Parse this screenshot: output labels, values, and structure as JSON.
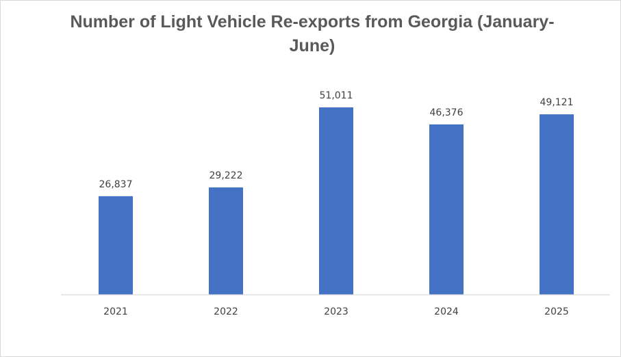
{
  "chart_data": {
    "type": "bar",
    "title": "Number of Light Vehicle Re-exports from Georgia (January-June)",
    "categories": [
      "2021",
      "2022",
      "2023",
      "2024",
      "2025"
    ],
    "values": [
      26837,
      29222,
      51011,
      46376,
      49121
    ],
    "data_labels": [
      "26,837",
      "29,222",
      "51,011",
      "46,376",
      "49,121"
    ],
    "xlabel": "",
    "ylabel": "",
    "ylim": [
      0,
      55000
    ],
    "y_axis_visible": false,
    "grid": false,
    "legend": "none",
    "bar_color": "#4472C4",
    "axis_color": "#d9d9d9"
  }
}
